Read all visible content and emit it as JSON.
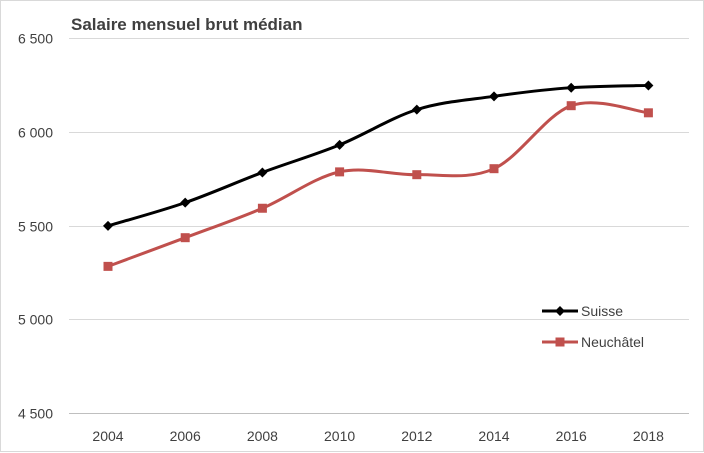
{
  "chart_data": {
    "type": "line",
    "title": "Salaire mensuel brut médian",
    "xlabel": "",
    "ylabel": "",
    "x": [
      "2004",
      "2006",
      "2008",
      "2010",
      "2012",
      "2014",
      "2016",
      "2018"
    ],
    "ylim": [
      4500,
      6500
    ],
    "yticks": [
      4500,
      5000,
      5500,
      6000,
      6500
    ],
    "ytick_labels": [
      "4 500",
      "5 000",
      "5 500",
      "6 000",
      "6 500"
    ],
    "grid": "horizontal",
    "legend_position": "right",
    "series": [
      {
        "name": "Suisse",
        "color": "#000000",
        "marker": "diamond",
        "values": [
          5498,
          5622,
          5783,
          5930,
          6118,
          6189,
          6235,
          6247
        ]
      },
      {
        "name": "Neuchâtel",
        "color": "#c0504d",
        "marker": "square",
        "values": [
          5282,
          5435,
          5592,
          5786,
          5771,
          5803,
          6139,
          6101
        ]
      }
    ]
  }
}
